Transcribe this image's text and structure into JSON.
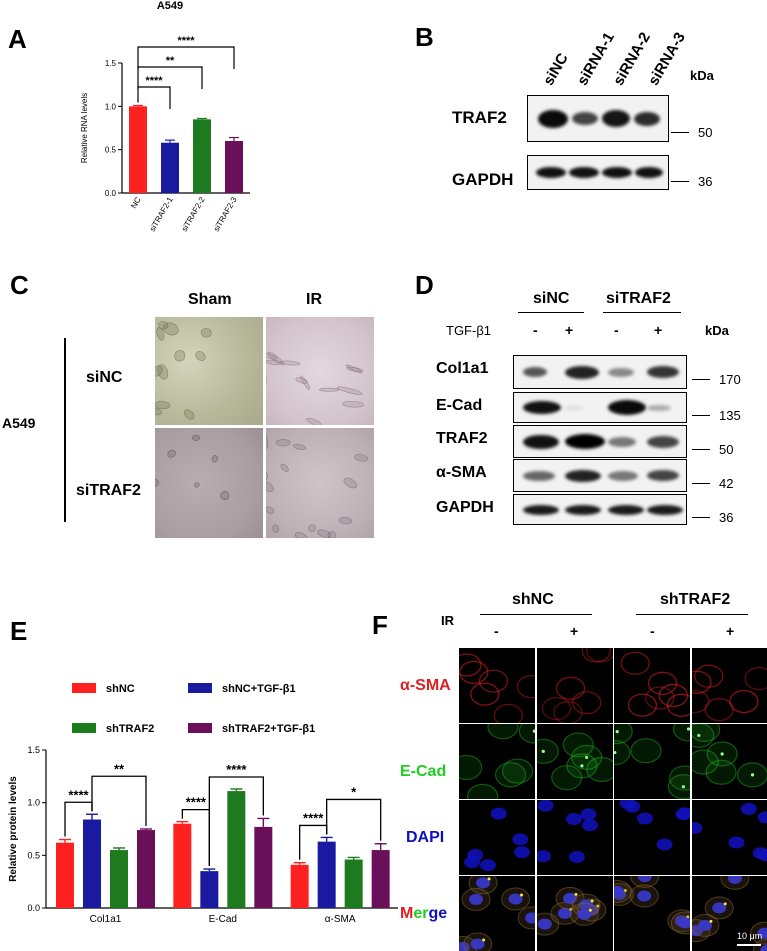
{
  "panels": {
    "A": "A",
    "B": "B",
    "C": "C",
    "D": "D",
    "E": "E",
    "F": "F"
  },
  "panel_b": {
    "lanes": [
      "siNC",
      "siRNA-1",
      "siRNA-2",
      "siRNA-3"
    ],
    "kda_label": "kDa",
    "rows": [
      {
        "label": "TRAF2",
        "marker": "50"
      },
      {
        "label": "GAPDH",
        "marker": "36"
      }
    ]
  },
  "panel_c": {
    "cols": [
      "Sham",
      "IR"
    ],
    "rows": [
      "siNC",
      "siTRAF2"
    ],
    "cell_line": "A549"
  },
  "panel_d": {
    "groups": [
      "siNC",
      "siTRAF2"
    ],
    "treatment_label": "TGF-β1",
    "treatment_signs": [
      "-",
      "+",
      "-",
      "+"
    ],
    "kda_label": "kDa",
    "rows": [
      {
        "label": "Col1a1",
        "marker": "170"
      },
      {
        "label": "E-Cad",
        "marker": "135"
      },
      {
        "label": "TRAF2",
        "marker": "50"
      },
      {
        "label": "α-SMA",
        "marker": "42"
      },
      {
        "label": "GAPDH",
        "marker": "36"
      }
    ]
  },
  "panel_f": {
    "groups": [
      "shNC",
      "shTRAF2"
    ],
    "treatment_label": "IR",
    "treatment_signs": [
      "-",
      "+",
      "-",
      "+"
    ],
    "rows": [
      "α-SMA",
      "E-Cad",
      "DAPI",
      "Merge"
    ],
    "merge_parts": [
      "M",
      "er",
      "ge"
    ],
    "scale_bar": "10 μm",
    "colors": {
      "asma": "#e02020",
      "ecad": "#22cc22",
      "dapi": "#1010c0"
    }
  },
  "chart_data": [
    {
      "type": "bar",
      "title": "A549",
      "ylabel": "Relative RNA levels",
      "categories": [
        "NC",
        "siTRAF2-1",
        "siTRAF2-2",
        "siTRAF2-3"
      ],
      "values": [
        1.0,
        0.58,
        0.85,
        0.6
      ],
      "errors": [
        0.01,
        0.03,
        0.01,
        0.04
      ],
      "colors": [
        "#ff2020",
        "#1a1aa0",
        "#1e7a1e",
        "#6a0f5a"
      ],
      "ylim": [
        0,
        1.5
      ],
      "yticks": [
        "0.0",
        "0.5",
        "1.0",
        "1.5"
      ],
      "significance": [
        {
          "from": 0,
          "to": 1,
          "label": "****"
        },
        {
          "from": 0,
          "to": 2,
          "label": "**"
        },
        {
          "from": 0,
          "to": 3,
          "label": "****"
        }
      ]
    },
    {
      "type": "bar",
      "ylabel": "Relative protein levels",
      "categories": [
        "Col1a1",
        "E-Cad",
        "α-SMA"
      ],
      "legend": [
        "shNC",
        "shNC+TGF-β1",
        "shTRAF2",
        "shTRAF2+TGF-β1"
      ],
      "legend_placement": "top",
      "series": [
        {
          "name": "shNC",
          "color": "#ff2020",
          "values": [
            0.62,
            0.8,
            0.41
          ],
          "errors": [
            0.03,
            0.02,
            0.02
          ]
        },
        {
          "name": "shNC+TGF-β1",
          "color": "#1a1aa0",
          "values": [
            0.84,
            0.35,
            0.63
          ],
          "errors": [
            0.05,
            0.02,
            0.04
          ]
        },
        {
          "name": "shTRAF2",
          "color": "#1e7a1e",
          "values": [
            0.55,
            1.11,
            0.46
          ],
          "errors": [
            0.02,
            0.02,
            0.02
          ]
        },
        {
          "name": "shTRAF2+TGF-β1",
          "color": "#6a0f5a",
          "values": [
            0.74,
            0.77,
            0.55
          ],
          "errors": [
            0.01,
            0.08,
            0.06
          ]
        }
      ],
      "ylim": [
        0,
        1.5
      ],
      "yticks": [
        "0.0",
        "0.5",
        "1.0",
        "1.5"
      ],
      "significance": [
        {
          "category": 0,
          "from": 0,
          "to": 1,
          "label": "****"
        },
        {
          "category": 0,
          "from": 1,
          "to": 3,
          "label": "**"
        },
        {
          "category": 1,
          "from": 0,
          "to": 1,
          "label": "****"
        },
        {
          "category": 1,
          "from": 1,
          "to": 3,
          "label": "****"
        },
        {
          "category": 2,
          "from": 0,
          "to": 1,
          "label": "****"
        },
        {
          "category": 2,
          "from": 1,
          "to": 3,
          "label": "*"
        }
      ]
    }
  ]
}
